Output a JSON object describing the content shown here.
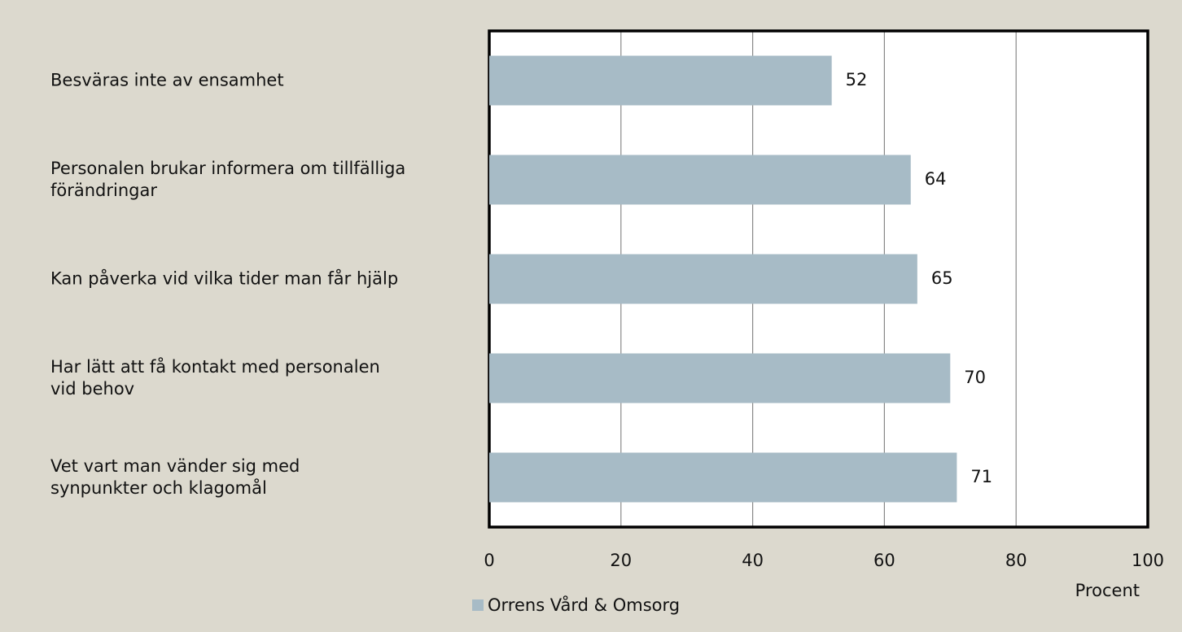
{
  "chart_data": {
    "type": "bar",
    "orientation": "horizontal",
    "categories": [
      "Besväras inte av ensamhet",
      "Personalen brukar informera om tillfälliga förändringar",
      "Kan påverka vid vilka tider man får hjälp",
      "Har lätt att få kontakt med personalen vid behov",
      "Vet vart man vänder sig med synpunkter och klagomål"
    ],
    "series": [
      {
        "name": "Orrens Vård & Omsorg",
        "color": "#a7bbc6",
        "values": [
          52,
          64,
          65,
          70,
          71
        ]
      }
    ],
    "xlim": [
      0,
      100
    ],
    "xticks": [
      0,
      20,
      40,
      60,
      80,
      100
    ],
    "x_label": "Procent",
    "grid": true
  }
}
